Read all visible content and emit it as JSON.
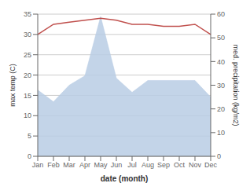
{
  "chart_data": {
    "type": "line",
    "categories": [
      "Jan",
      "Feb",
      "Mar",
      "Apr",
      "May",
      "Jun",
      "Jul",
      "Aug",
      "Sep",
      "Oct",
      "Nov",
      "Dec"
    ],
    "series": [
      {
        "type": "area",
        "axis": "y2",
        "color": "#b8cce4",
        "values": [
          28,
          23,
          30,
          34,
          59,
          33,
          27,
          32,
          32,
          32,
          32,
          25
        ]
      },
      {
        "type": "line",
        "color": "#c0504d",
        "values": [
          30.0,
          32.5,
          33.0,
          33.5,
          34.0,
          33.5,
          32.5,
          32.5,
          32.0,
          32.0,
          32.5,
          30.0
        ]
      }
    ],
    "xlabel": "date (month)",
    "ylabel": "max temp (C)",
    "y2label": "med. precipitation (kg/m2)",
    "ylim": [
      0,
      35
    ],
    "yticks": [
      0,
      5,
      10,
      15,
      20,
      25,
      30,
      35
    ],
    "y2lim": [
      0,
      60
    ],
    "y2ticks": [
      0,
      10,
      20,
      30,
      40,
      50,
      60
    ],
    "grid": true
  }
}
